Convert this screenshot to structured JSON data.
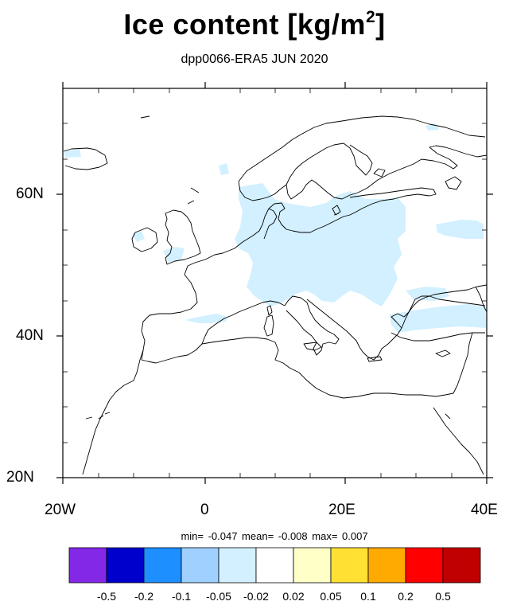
{
  "title": {
    "main": "Ice content  [kg/m",
    "unit_exponent": "2",
    "close": "]"
  },
  "subtitle": "dpp0066-ERA5 JUN 2020",
  "axes": {
    "lat_labels": [
      "60N",
      "40N",
      "20N"
    ],
    "lon_labels": [
      "20W",
      "0",
      "20E",
      "40E"
    ],
    "lon_range": [
      -20,
      40
    ],
    "lat_range": [
      20,
      75
    ]
  },
  "stats": {
    "text": "min=  -0.047  mean=  -0.008  max=   0.007"
  },
  "colorbar": {
    "colors": [
      "#8428e8",
      "#0000cc",
      "#1e8fff",
      "#a0d0ff",
      "#d2f0ff",
      "#ffffff",
      "#ffffc8",
      "#ffe033",
      "#ffaa00",
      "#ff0000",
      "#c00000"
    ],
    "labels": [
      "-0.5",
      "-0.2",
      "-0.1",
      "-0.05",
      "-0.02",
      "0.02",
      "0.05",
      "0.1",
      "0.2",
      "0.5"
    ]
  },
  "map_colors": {
    "coast": "#000000",
    "ice_light": "#d2f0ff"
  }
}
